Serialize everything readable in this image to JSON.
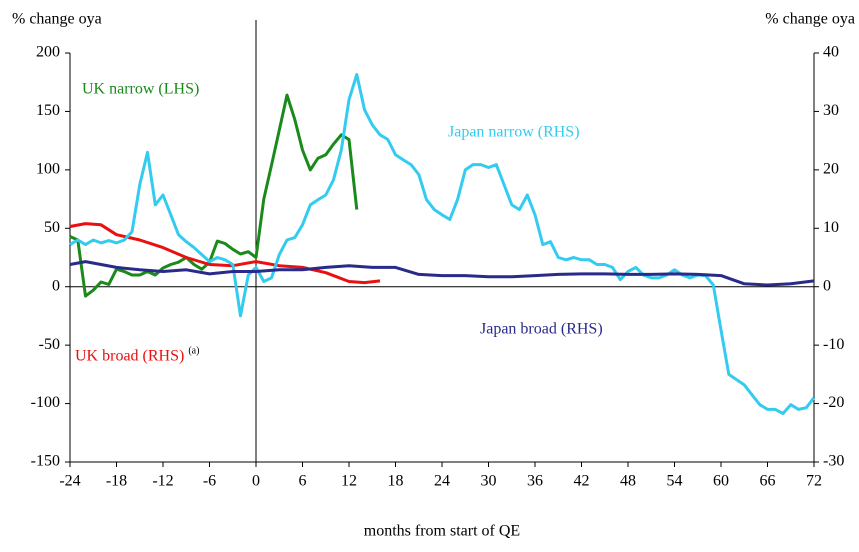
{
  "chart_data": {
    "type": "line",
    "y_label": "% change oya",
    "y2_label": "% change oya",
    "x_label": "months from start of QE",
    "note": "(a)",
    "xlim": [
      -24,
      72
    ],
    "xticks": [
      -24,
      -18,
      -12,
      -6,
      0,
      6,
      12,
      18,
      24,
      30,
      36,
      42,
      48,
      54,
      60,
      66,
      72
    ],
    "ylim": [
      -150,
      200
    ],
    "yticks": [
      -150,
      -100,
      -50,
      0,
      50,
      100,
      150,
      200
    ],
    "y2lim": [
      -30,
      40
    ],
    "y2ticks": [
      -30,
      -20,
      -10,
      0,
      10,
      20,
      30,
      40
    ],
    "series": [
      {
        "name": "UK narrow (LHS)",
        "color": "#1a8a1a",
        "x": [
          -24,
          -23,
          -22,
          -21,
          -20,
          -19,
          -18,
          -17,
          -16,
          -15,
          -14,
          -13,
          -12,
          -11,
          -10,
          -9,
          -8,
          -7,
          -6,
          -5,
          -4,
          -3,
          -2,
          -1,
          0,
          1,
          2,
          3,
          4,
          5,
          6,
          7,
          8,
          9,
          10,
          11,
          12,
          13
        ],
        "values": [
          43,
          40,
          -8,
          -3,
          4,
          2,
          15,
          13,
          10,
          10,
          13,
          10,
          16,
          19,
          21,
          25,
          19,
          15,
          21,
          39,
          37,
          32,
          28,
          30,
          25,
          75,
          104,
          134,
          164,
          143,
          117,
          100,
          110,
          113,
          122,
          130,
          126,
          66
        ]
      },
      {
        "name": "UK broad (RHS)",
        "color": "#e81010",
        "axis": "y2",
        "x": [
          -24,
          -22,
          -20,
          -18,
          -15,
          -12,
          -9,
          -6,
          -3,
          0,
          3,
          6,
          9,
          12,
          14,
          16
        ],
        "values": [
          10.3,
          10.8,
          10.6,
          8.9,
          8,
          6.7,
          5,
          3.8,
          3.6,
          4.3,
          3.6,
          3.3,
          2.4,
          0.9,
          0.7,
          1.0
        ]
      },
      {
        "name": "Japan narrow (RHS)",
        "color": "#33ccf0",
        "axis": "y2",
        "x": [
          -24,
          -23,
          -22,
          -21,
          -20,
          -19,
          -18,
          -17,
          -16,
          -15,
          -14,
          -13,
          -12,
          -11,
          -10,
          -9,
          -8,
          -7,
          -6,
          -5,
          -4,
          -3,
          -2,
          -1,
          0,
          1,
          2,
          3,
          4,
          5,
          6,
          7,
          8,
          9,
          10,
          11,
          12,
          13,
          14,
          15,
          16,
          17,
          18,
          19,
          20,
          21,
          22,
          23,
          24,
          25,
          26,
          27,
          28,
          29,
          30,
          31,
          32,
          33,
          34,
          35,
          36,
          37,
          38,
          39,
          40,
          41,
          42,
          43,
          44,
          45,
          46,
          47,
          48,
          49,
          50,
          51,
          52,
          53,
          54,
          55,
          56,
          57,
          58,
          59,
          60,
          61,
          62,
          63,
          64,
          65,
          66,
          67,
          68,
          69,
          70,
          71,
          72
        ],
        "values": [
          7.2,
          8,
          7.2,
          8,
          7.5,
          7.9,
          7.5,
          8,
          9.4,
          17.5,
          23,
          14,
          15.7,
          12.3,
          8.9,
          7.7,
          6.7,
          5.5,
          4.3,
          5,
          4.6,
          3.8,
          -5,
          2,
          3.3,
          0.9,
          1.5,
          5.5,
          8,
          8.4,
          10.6,
          14,
          14.9,
          15.7,
          18.3,
          23.4,
          32,
          36.3,
          30.3,
          27.7,
          26,
          25.2,
          22.6,
          21.7,
          20.9,
          19.2,
          14.9,
          13.2,
          12.3,
          11.5,
          14.9,
          20,
          20.9,
          20.9,
          20.4,
          20.9,
          17.5,
          14,
          13.2,
          15.7,
          12.3,
          7.2,
          7.7,
          5,
          4.6,
          5,
          4.6,
          4.6,
          3.8,
          3.8,
          3.3,
          1.2,
          2.6,
          3.3,
          2,
          1.5,
          1.5,
          2,
          2.9,
          2,
          1.5,
          2,
          1.9,
          0.3,
          -7.4,
          -15,
          -15.9,
          -16.8,
          -18.5,
          -20.2,
          -21,
          -21,
          -21.7,
          -20.2,
          -21,
          -20.7,
          -19
        ]
      },
      {
        "name": "Japan broad (RHS)",
        "color": "#2a2a8a",
        "axis": "y2",
        "x": [
          -24,
          -22,
          -20,
          -18,
          -15,
          -12,
          -9,
          -6,
          -3,
          0,
          3,
          6,
          9,
          12,
          15,
          18,
          21,
          24,
          27,
          30,
          33,
          36,
          39,
          42,
          45,
          48,
          51,
          54,
          57,
          60,
          63,
          66,
          69,
          72
        ],
        "values": [
          3.8,
          4.3,
          3.8,
          3.3,
          2.9,
          2.6,
          2.9,
          2.2,
          2.6,
          2.6,
          2.9,
          2.9,
          3.3,
          3.6,
          3.3,
          3.3,
          2.1,
          1.9,
          1.9,
          1.7,
          1.7,
          1.9,
          2.1,
          2.2,
          2.2,
          2.1,
          2.1,
          2.2,
          2.1,
          1.9,
          0.5,
          0.3,
          0.5,
          1
        ]
      }
    ]
  }
}
